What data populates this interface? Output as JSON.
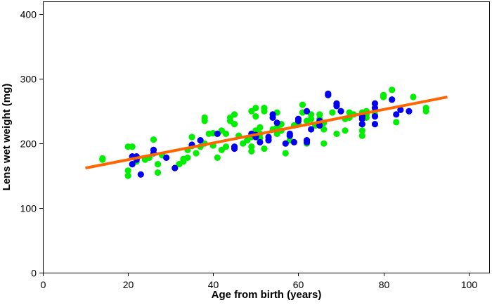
{
  "chart_data": {
    "type": "scatter",
    "title": "",
    "xlabel": "Age from birth (years)",
    "ylabel": "Lens wet weight (mg)",
    "xlim": [
      0,
      105
    ],
    "ylim": [
      0,
      420
    ],
    "xticks": [
      0,
      20,
      40,
      60,
      80,
      100
    ],
    "yticks": [
      0,
      100,
      200,
      300,
      400
    ],
    "grid": false,
    "legend": "none",
    "series": [
      {
        "color": "#00ee00",
        "marker": "circle",
        "points": [
          [
            14,
            175
          ],
          [
            14,
            177
          ],
          [
            20,
            150
          ],
          [
            20,
            158
          ],
          [
            20,
            195
          ],
          [
            21,
            195
          ],
          [
            22,
            172
          ],
          [
            24,
            175
          ],
          [
            25,
            178
          ],
          [
            26,
            206
          ],
          [
            26,
            190
          ],
          [
            27,
            155
          ],
          [
            27,
            168
          ],
          [
            28,
            182
          ],
          [
            29,
            178
          ],
          [
            32,
            168
          ],
          [
            33,
            172
          ],
          [
            33,
            176
          ],
          [
            34,
            178
          ],
          [
            34,
            190
          ],
          [
            35,
            196
          ],
          [
            35,
            210
          ],
          [
            36,
            185
          ],
          [
            37,
            195
          ],
          [
            38,
            200
          ],
          [
            38,
            235
          ],
          [
            38,
            240
          ],
          [
            39,
            215
          ],
          [
            40,
            216
          ],
          [
            40,
            197
          ],
          [
            41,
            178
          ],
          [
            42,
            220
          ],
          [
            42,
            190
          ],
          [
            43,
            195
          ],
          [
            43,
            215
          ],
          [
            44,
            235
          ],
          [
            44,
            240
          ],
          [
            45,
            230
          ],
          [
            45,
            245
          ],
          [
            46,
            212
          ],
          [
            47,
            200
          ],
          [
            48,
            205
          ],
          [
            49,
            195
          ],
          [
            49,
            188
          ],
          [
            49,
            210
          ],
          [
            49,
            250
          ],
          [
            50,
            242
          ],
          [
            50,
            255
          ],
          [
            50,
            220
          ],
          [
            51,
            215
          ],
          [
            51,
            225
          ],
          [
            51,
            208
          ],
          [
            52,
            192
          ],
          [
            52,
            250
          ],
          [
            52,
            255
          ],
          [
            53,
            210
          ],
          [
            54,
            222
          ],
          [
            55,
            225
          ],
          [
            55,
            248
          ],
          [
            55,
            215
          ],
          [
            56,
            220
          ],
          [
            56,
            230
          ],
          [
            57,
            185
          ],
          [
            58,
            205
          ],
          [
            59,
            228
          ],
          [
            60,
            230
          ],
          [
            61,
            260
          ],
          [
            61,
            248
          ],
          [
            62,
            235
          ],
          [
            62,
            200
          ],
          [
            63,
            238
          ],
          [
            63,
            245
          ],
          [
            64,
            228
          ],
          [
            65,
            245
          ],
          [
            65,
            238
          ],
          [
            66,
            222
          ],
          [
            66,
            200
          ],
          [
            66,
            232
          ],
          [
            67,
            275
          ],
          [
            68,
            248
          ],
          [
            69,
            215
          ],
          [
            69,
            260
          ],
          [
            70,
            250
          ],
          [
            71,
            220
          ],
          [
            71,
            238
          ],
          [
            72,
            240
          ],
          [
            72,
            248
          ],
          [
            73,
            245
          ],
          [
            75,
            212
          ],
          [
            75,
            220
          ],
          [
            75,
            230
          ],
          [
            75,
            248
          ],
          [
            76,
            240
          ],
          [
            76,
            250
          ],
          [
            76,
            245
          ],
          [
            78,
            245
          ],
          [
            80,
            272
          ],
          [
            80,
            275
          ],
          [
            82,
            268
          ],
          [
            82,
            283
          ],
          [
            83,
            233
          ],
          [
            87,
            272
          ],
          [
            90,
            250
          ],
          [
            90,
            255
          ]
        ]
      },
      {
        "color": "#0000ee",
        "marker": "circle",
        "points": [
          [
            21,
            180
          ],
          [
            21,
            168
          ],
          [
            22,
            180
          ],
          [
            22,
            175
          ],
          [
            23,
            152
          ],
          [
            26,
            190
          ],
          [
            26,
            185
          ],
          [
            29,
            178
          ],
          [
            31,
            162
          ],
          [
            35,
            198
          ],
          [
            37,
            205
          ],
          [
            41,
            215
          ],
          [
            45,
            195
          ],
          [
            45,
            192
          ],
          [
            49,
            215
          ],
          [
            50,
            213
          ],
          [
            50,
            210
          ],
          [
            51,
            202
          ],
          [
            53,
            205
          ],
          [
            53,
            210
          ],
          [
            54,
            245
          ],
          [
            54,
            240
          ],
          [
            55,
            232
          ],
          [
            57,
            200
          ],
          [
            58,
            215
          ],
          [
            58,
            212
          ],
          [
            59,
            202
          ],
          [
            60,
            238
          ],
          [
            60,
            235
          ],
          [
            62,
            250
          ],
          [
            62,
            202
          ],
          [
            62,
            205
          ],
          [
            63,
            222
          ],
          [
            65,
            235
          ],
          [
            65,
            228
          ],
          [
            67,
            275
          ],
          [
            67,
            277
          ],
          [
            69,
            262
          ],
          [
            69,
            258
          ],
          [
            70,
            250
          ],
          [
            75,
            238
          ],
          [
            75,
            230
          ],
          [
            75,
            242
          ],
          [
            78,
            230
          ],
          [
            78,
            242
          ],
          [
            78,
            262
          ],
          [
            78,
            255
          ],
          [
            82,
            268
          ],
          [
            83,
            245
          ],
          [
            84,
            252
          ],
          [
            86,
            250
          ]
        ]
      }
    ],
    "trendline": {
      "color": "#ff6600",
      "points": [
        [
          10,
          162
        ],
        [
          95,
          272
        ]
      ]
    }
  }
}
